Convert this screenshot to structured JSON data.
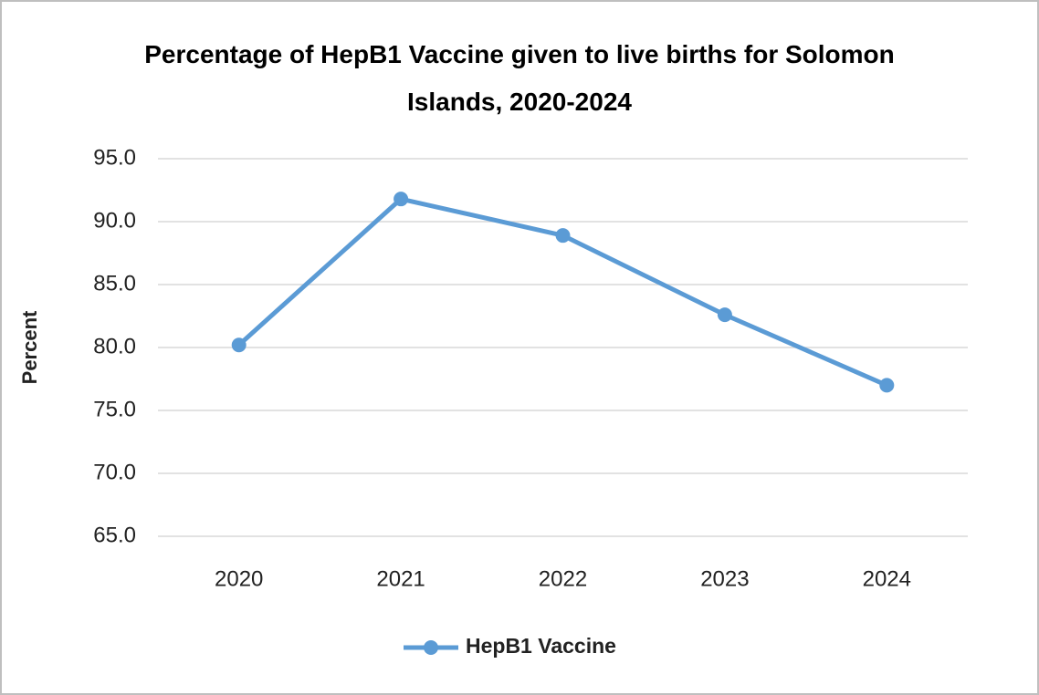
{
  "chart_data": {
    "type": "line",
    "title": "Percentage of HepB1 Vaccine given to live births for Solomon  Islands, 2020-2024",
    "ylabel": "Percent",
    "categories": [
      "2020",
      "2021",
      "2022",
      "2023",
      "2024"
    ],
    "series": [
      {
        "name": "HepB1 Vaccine",
        "color": "#5b9bd5",
        "values": [
          80.2,
          91.8,
          88.9,
          82.6,
          77.0
        ]
      }
    ],
    "ylim": [
      65,
      95
    ],
    "yticks": [
      {
        "value": 65,
        "label": "65.0"
      },
      {
        "value": 70,
        "label": "70.0"
      },
      {
        "value": 75,
        "label": "75.0"
      },
      {
        "value": 80,
        "label": "80.0"
      },
      {
        "value": 85,
        "label": "85.0"
      },
      {
        "value": 90,
        "label": "90.0"
      },
      {
        "value": 95,
        "label": "95.0"
      }
    ],
    "grid": true,
    "legend": "bottom"
  }
}
